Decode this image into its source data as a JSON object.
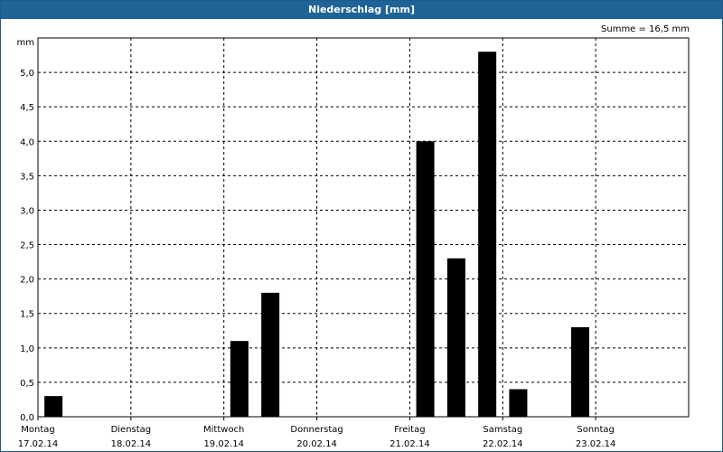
{
  "chart_data": {
    "type": "bar",
    "title": "Niederschlag [mm]",
    "ylabel": "mm",
    "summary": "Summe = 16,5 mm",
    "ylim": [
      0,
      5.5
    ],
    "yticks": [
      "0,0",
      "0,5",
      "1,0",
      "1,5",
      "2,0",
      "2,5",
      "3,0",
      "3,5",
      "4,0",
      "4,5",
      "5,0"
    ],
    "grid": true,
    "days": [
      {
        "name": "Montag",
        "date": "17.02.14"
      },
      {
        "name": "Dienstag",
        "date": "18.02.14"
      },
      {
        "name": "Mittwoch",
        "date": "19.02.14"
      },
      {
        "name": "Donnerstag",
        "date": "20.02.14"
      },
      {
        "name": "Freitag",
        "date": "21.02.14"
      },
      {
        "name": "Samstag",
        "date": "22.02.14"
      },
      {
        "name": "Sonntag",
        "date": "23.02.14"
      }
    ],
    "bars_per_day": 3,
    "values": [
      0.3,
      0,
      0,
      0,
      0,
      0,
      1.1,
      1.8,
      0,
      0,
      0,
      0,
      4.0,
      2.3,
      5.3,
      0.4,
      0,
      1.3,
      0,
      0,
      0
    ],
    "bar_color": "#000000",
    "grid_color": "#000000"
  }
}
